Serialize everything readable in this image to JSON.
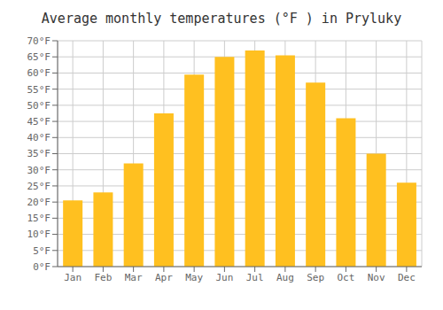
{
  "chart_data": {
    "type": "bar",
    "title": "Average monthly temperatures (°F ) in Pryluky",
    "categories": [
      "Jan",
      "Feb",
      "Mar",
      "Apr",
      "May",
      "Jun",
      "Jul",
      "Aug",
      "Sep",
      "Oct",
      "Nov",
      "Dec"
    ],
    "values": [
      20.5,
      23,
      32,
      47.5,
      59.5,
      65,
      67,
      65.5,
      57,
      46,
      35,
      26
    ],
    "color": "#FFC020",
    "ylim": [
      0,
      70
    ],
    "yticks": [
      {
        "value": 0,
        "label": "0°F"
      },
      {
        "value": 5,
        "label": "5°F"
      },
      {
        "value": 10,
        "label": "10°F"
      },
      {
        "value": 15,
        "label": "15°F"
      },
      {
        "value": 20,
        "label": "20°F"
      },
      {
        "value": 25,
        "label": "25°F"
      },
      {
        "value": 30,
        "label": "30°F"
      },
      {
        "value": 35,
        "label": "35°F"
      },
      {
        "value": 40,
        "label": "40°F"
      },
      {
        "value": 45,
        "label": "45°F"
      },
      {
        "value": 50,
        "label": "50°F"
      },
      {
        "value": 55,
        "label": "55°F"
      },
      {
        "value": 60,
        "label": "60°F"
      },
      {
        "value": 65,
        "label": "65°F"
      },
      {
        "value": 70,
        "label": "70°F"
      }
    ],
    "grid": true
  }
}
